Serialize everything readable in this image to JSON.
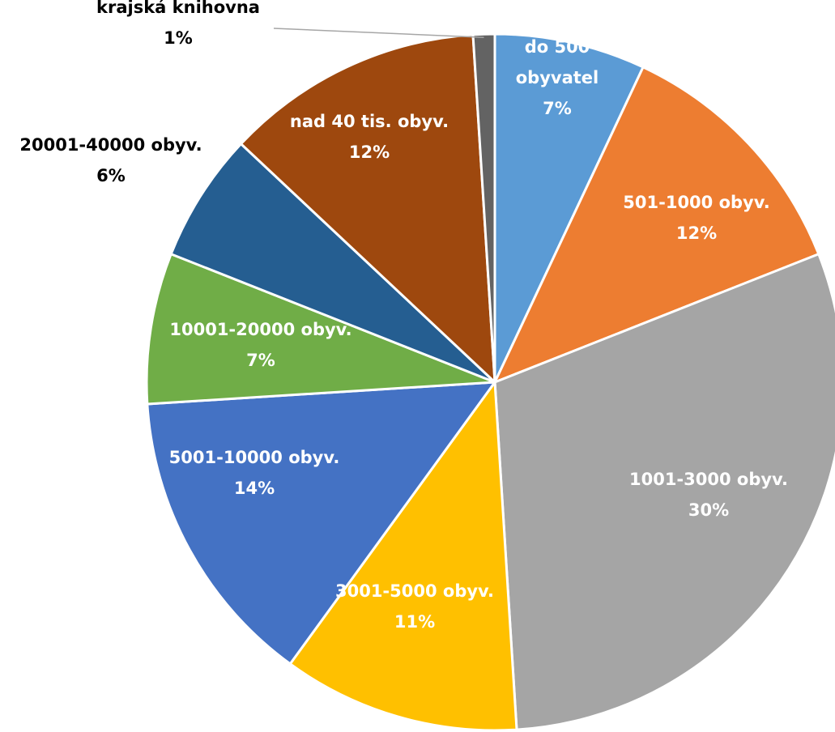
{
  "chart_data": {
    "type": "pie",
    "title": "",
    "unit": "%",
    "slices": [
      {
        "category": "do 500 obyvatel",
        "lines": [
          "do 500",
          "obyvatel"
        ],
        "value": 7,
        "value_label": "7%",
        "color": "#5B9BD5",
        "label_color": "#ffffff",
        "label_position": "inside"
      },
      {
        "category": "501-1000 obyv.",
        "lines": [
          "501-1000 obyv."
        ],
        "value": 12,
        "value_label": "12%",
        "color": "#ED7D31",
        "label_color": "#ffffff",
        "label_position": "inside"
      },
      {
        "category": "1001-3000 obyv.",
        "lines": [
          "1001-3000 obyv."
        ],
        "value": 30,
        "value_label": "30%",
        "color": "#A5A5A5",
        "label_color": "#ffffff",
        "label_position": "inside"
      },
      {
        "category": "3001-5000 obyv.",
        "lines": [
          "3001-5000 obyv."
        ],
        "value": 11,
        "value_label": "11%",
        "color": "#FFC000",
        "label_color": "#ffffff",
        "label_position": "inside"
      },
      {
        "category": "5001-10000 obyv.",
        "lines": [
          "5001-10000 obyv."
        ],
        "value": 14,
        "value_label": "14%",
        "color": "#4472C4",
        "label_color": "#ffffff",
        "label_position": "inside"
      },
      {
        "category": "10001-20000 obyv.",
        "lines": [
          "10001-20000 obyv."
        ],
        "value": 7,
        "value_label": "7%",
        "color": "#70AD47",
        "label_color": "#ffffff",
        "label_position": "inside"
      },
      {
        "category": "20001-40000 obyv.",
        "lines": [
          "20001-40000 obyv."
        ],
        "value": 6,
        "value_label": "6%",
        "color": "#255E91",
        "label_color": "#000000",
        "label_position": "outside"
      },
      {
        "category": "nad 40 tis. obyv.",
        "lines": [
          "nad 40 tis. obyv."
        ],
        "value": 12,
        "value_label": "12%",
        "color": "#9E480E",
        "label_color": "#ffffff",
        "label_position": "inside"
      },
      {
        "category": "krajská knihovna",
        "lines": [
          "krajská knihovna"
        ],
        "value": 1,
        "value_label": "1%",
        "color": "#636363",
        "label_color": "#000000",
        "label_position": "outside-with-leader"
      }
    ],
    "legend": "none",
    "start_angle": "top, clockwise"
  }
}
